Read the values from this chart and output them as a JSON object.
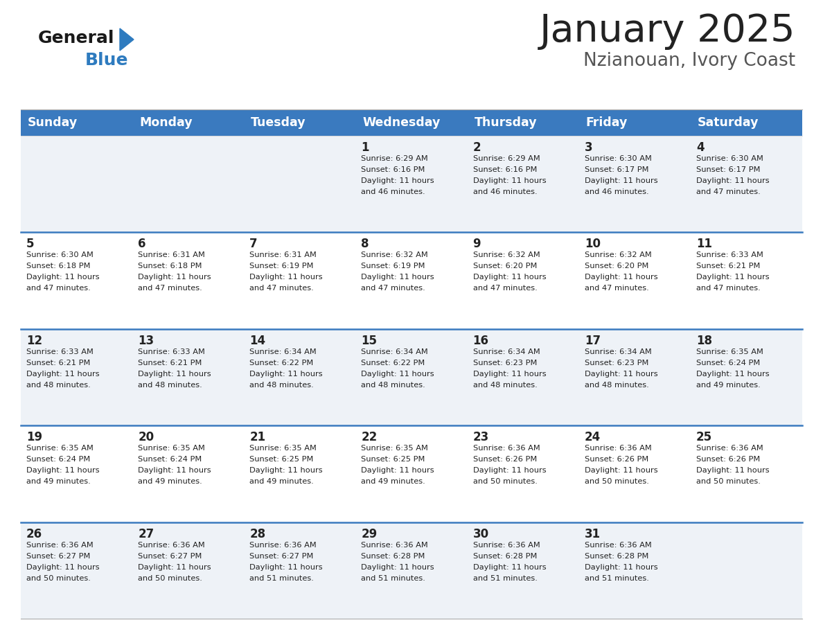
{
  "title": "January 2025",
  "subtitle": "Nzianouan, Ivory Coast",
  "days_of_week": [
    "Sunday",
    "Monday",
    "Tuesday",
    "Wednesday",
    "Thursday",
    "Friday",
    "Saturday"
  ],
  "header_bg_color": "#3a7abf",
  "header_text_color": "#ffffff",
  "bg_color_even": "#eef2f7",
  "bg_color_odd": "#ffffff",
  "row_line_color": "#3a7abf",
  "cell_text_color": "#222222",
  "title_color": "#222222",
  "subtitle_color": "#555555",
  "logo_general_color": "#1a1a1a",
  "logo_blue_color": "#2e7bbf",
  "calendar_data": [
    [
      null,
      null,
      null,
      {
        "day": 1,
        "sunrise": "6:29 AM",
        "sunset": "6:16 PM",
        "daylight_hours": 11,
        "daylight_minutes": 46
      },
      {
        "day": 2,
        "sunrise": "6:29 AM",
        "sunset": "6:16 PM",
        "daylight_hours": 11,
        "daylight_minutes": 46
      },
      {
        "day": 3,
        "sunrise": "6:30 AM",
        "sunset": "6:17 PM",
        "daylight_hours": 11,
        "daylight_minutes": 46
      },
      {
        "day": 4,
        "sunrise": "6:30 AM",
        "sunset": "6:17 PM",
        "daylight_hours": 11,
        "daylight_minutes": 47
      }
    ],
    [
      {
        "day": 5,
        "sunrise": "6:30 AM",
        "sunset": "6:18 PM",
        "daylight_hours": 11,
        "daylight_minutes": 47
      },
      {
        "day": 6,
        "sunrise": "6:31 AM",
        "sunset": "6:18 PM",
        "daylight_hours": 11,
        "daylight_minutes": 47
      },
      {
        "day": 7,
        "sunrise": "6:31 AM",
        "sunset": "6:19 PM",
        "daylight_hours": 11,
        "daylight_minutes": 47
      },
      {
        "day": 8,
        "sunrise": "6:32 AM",
        "sunset": "6:19 PM",
        "daylight_hours": 11,
        "daylight_minutes": 47
      },
      {
        "day": 9,
        "sunrise": "6:32 AM",
        "sunset": "6:20 PM",
        "daylight_hours": 11,
        "daylight_minutes": 47
      },
      {
        "day": 10,
        "sunrise": "6:32 AM",
        "sunset": "6:20 PM",
        "daylight_hours": 11,
        "daylight_minutes": 47
      },
      {
        "day": 11,
        "sunrise": "6:33 AM",
        "sunset": "6:21 PM",
        "daylight_hours": 11,
        "daylight_minutes": 47
      }
    ],
    [
      {
        "day": 12,
        "sunrise": "6:33 AM",
        "sunset": "6:21 PM",
        "daylight_hours": 11,
        "daylight_minutes": 48
      },
      {
        "day": 13,
        "sunrise": "6:33 AM",
        "sunset": "6:21 PM",
        "daylight_hours": 11,
        "daylight_minutes": 48
      },
      {
        "day": 14,
        "sunrise": "6:34 AM",
        "sunset": "6:22 PM",
        "daylight_hours": 11,
        "daylight_minutes": 48
      },
      {
        "day": 15,
        "sunrise": "6:34 AM",
        "sunset": "6:22 PM",
        "daylight_hours": 11,
        "daylight_minutes": 48
      },
      {
        "day": 16,
        "sunrise": "6:34 AM",
        "sunset": "6:23 PM",
        "daylight_hours": 11,
        "daylight_minutes": 48
      },
      {
        "day": 17,
        "sunrise": "6:34 AM",
        "sunset": "6:23 PM",
        "daylight_hours": 11,
        "daylight_minutes": 48
      },
      {
        "day": 18,
        "sunrise": "6:35 AM",
        "sunset": "6:24 PM",
        "daylight_hours": 11,
        "daylight_minutes": 49
      }
    ],
    [
      {
        "day": 19,
        "sunrise": "6:35 AM",
        "sunset": "6:24 PM",
        "daylight_hours": 11,
        "daylight_minutes": 49
      },
      {
        "day": 20,
        "sunrise": "6:35 AM",
        "sunset": "6:24 PM",
        "daylight_hours": 11,
        "daylight_minutes": 49
      },
      {
        "day": 21,
        "sunrise": "6:35 AM",
        "sunset": "6:25 PM",
        "daylight_hours": 11,
        "daylight_minutes": 49
      },
      {
        "day": 22,
        "sunrise": "6:35 AM",
        "sunset": "6:25 PM",
        "daylight_hours": 11,
        "daylight_minutes": 49
      },
      {
        "day": 23,
        "sunrise": "6:36 AM",
        "sunset": "6:26 PM",
        "daylight_hours": 11,
        "daylight_minutes": 50
      },
      {
        "day": 24,
        "sunrise": "6:36 AM",
        "sunset": "6:26 PM",
        "daylight_hours": 11,
        "daylight_minutes": 50
      },
      {
        "day": 25,
        "sunrise": "6:36 AM",
        "sunset": "6:26 PM",
        "daylight_hours": 11,
        "daylight_minutes": 50
      }
    ],
    [
      {
        "day": 26,
        "sunrise": "6:36 AM",
        "sunset": "6:27 PM",
        "daylight_hours": 11,
        "daylight_minutes": 50
      },
      {
        "day": 27,
        "sunrise": "6:36 AM",
        "sunset": "6:27 PM",
        "daylight_hours": 11,
        "daylight_minutes": 50
      },
      {
        "day": 28,
        "sunrise": "6:36 AM",
        "sunset": "6:27 PM",
        "daylight_hours": 11,
        "daylight_minutes": 51
      },
      {
        "day": 29,
        "sunrise": "6:36 AM",
        "sunset": "6:28 PM",
        "daylight_hours": 11,
        "daylight_minutes": 51
      },
      {
        "day": 30,
        "sunrise": "6:36 AM",
        "sunset": "6:28 PM",
        "daylight_hours": 11,
        "daylight_minutes": 51
      },
      {
        "day": 31,
        "sunrise": "6:36 AM",
        "sunset": "6:28 PM",
        "daylight_hours": 11,
        "daylight_minutes": 51
      },
      null
    ]
  ]
}
